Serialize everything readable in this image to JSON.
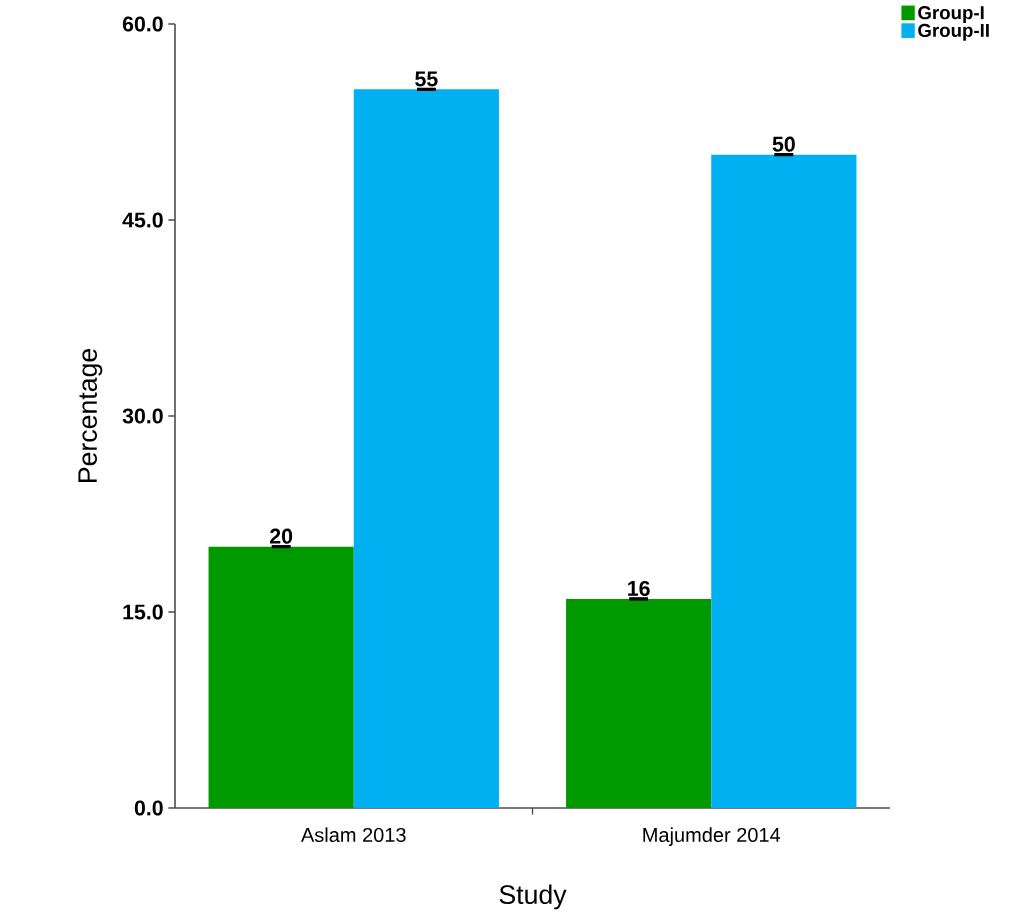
{
  "chart_data": {
    "type": "bar",
    "xlabel": "Study",
    "ylabel": "Percentage",
    "categories": [
      "Aslam 2013",
      "Majumder 2014"
    ],
    "series": [
      {
        "name": "Group-I",
        "color": "#009900",
        "values": [
          20,
          16
        ],
        "errors": [
          0,
          0
        ]
      },
      {
        "name": "Group-II",
        "color": "#00b0f0",
        "values": [
          55,
          50
        ],
        "errors": [
          0,
          0
        ]
      }
    ],
    "ylim": [
      0,
      60
    ],
    "yticks": [
      {
        "value": 0,
        "label": "0.0"
      },
      {
        "value": 15,
        "label": "15.0"
      },
      {
        "value": 30,
        "label": "30.0"
      },
      {
        "value": 45,
        "label": "45.0"
      },
      {
        "value": 60,
        "label": "60.0"
      }
    ],
    "data_labels": true,
    "legend": "top right"
  }
}
